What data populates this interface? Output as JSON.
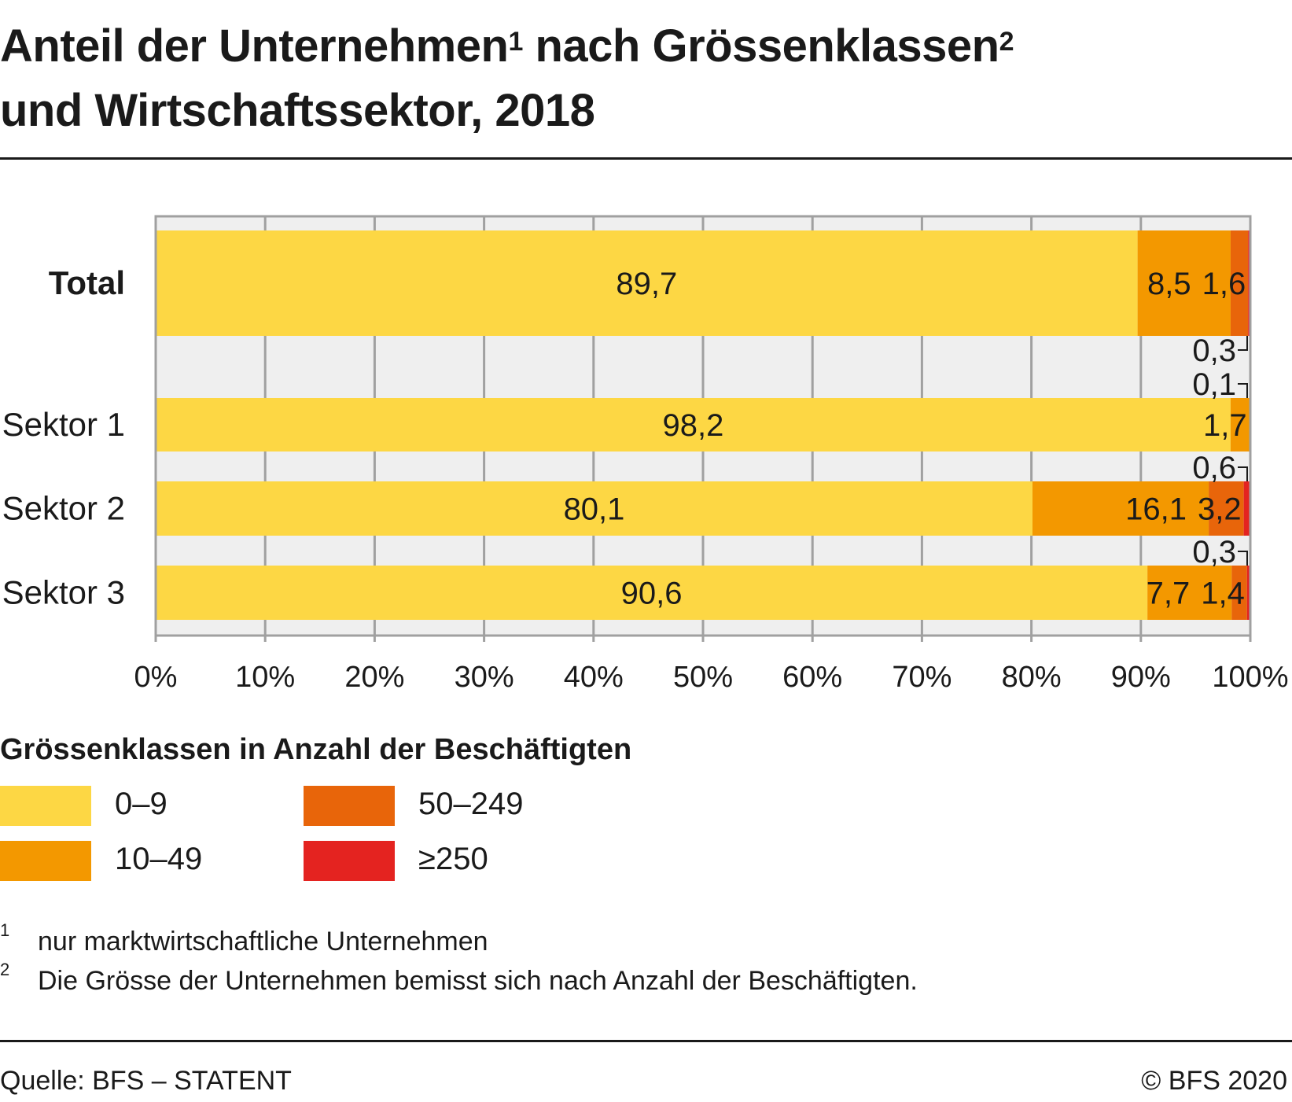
{
  "title": {
    "line1": "Anteil der Unternehmen",
    "sup1": "1",
    "line1b": " nach Grössenklassen",
    "sup2": "2",
    "line2": "und Wirtschaftssektor, 2018"
  },
  "chart_data": {
    "type": "bar",
    "orientation": "horizontal",
    "stacked": true,
    "categories": [
      "Total",
      "Sektor 1",
      "Sektor 2",
      "Sektor 3"
    ],
    "series": [
      {
        "name": "0–9",
        "color": "#fdd744",
        "values": [
          89.7,
          98.2,
          80.1,
          90.6
        ],
        "labels": [
          "89,7",
          "98,2",
          "80,1",
          "90,6"
        ]
      },
      {
        "name": "10–49",
        "color": "#f39800",
        "values": [
          8.5,
          1.7,
          16.1,
          7.7
        ],
        "labels": [
          "8,5",
          "1,7",
          "16,1",
          "7,7"
        ]
      },
      {
        "name": "50–249",
        "color": "#e8650a",
        "values": [
          1.6,
          0.1,
          3.2,
          1.4
        ],
        "labels": [
          "1,6",
          "0,1",
          "3,2",
          "1,4"
        ]
      },
      {
        "name": "≥250",
        "color": "#e42320",
        "values": [
          0.3,
          0.0,
          0.6,
          0.3
        ],
        "labels": [
          "0,3",
          "",
          "0,6",
          "0,3"
        ]
      }
    ],
    "xlim": [
      0,
      100
    ],
    "xticks": [
      "0%",
      "10%",
      "20%",
      "30%",
      "40%",
      "50%",
      "60%",
      "70%",
      "80%",
      "90%",
      "100%"
    ],
    "grid": true,
    "legend_title": "Grössenklassen in Anzahl der Beschäftigten",
    "legend_position": "bottom"
  },
  "footnotes": [
    {
      "n": "1",
      "text": "nur marktwirtschaftliche Unternehmen"
    },
    {
      "n": "2",
      "text": "Die Grösse der Unternehmen bemisst sich nach Anzahl der Beschäftigten."
    }
  ],
  "source": "Quelle: BFS – STATENT",
  "copyright": "© BFS 2020"
}
